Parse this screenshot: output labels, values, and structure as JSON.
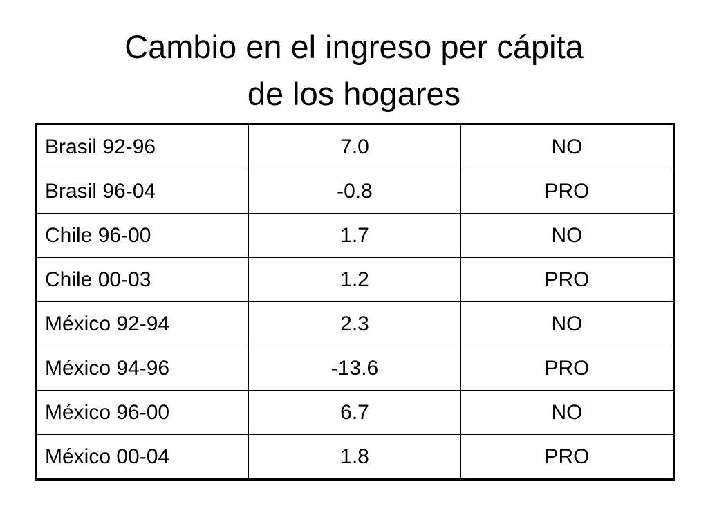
{
  "title": [
    "Cambio en el ingreso per cápita",
    "de los hogares"
  ],
  "table": {
    "rows": [
      [
        "Brasil 92-96",
        "7.0",
        "NO"
      ],
      [
        "Brasil 96-04",
        "-0.8",
        "PRO"
      ],
      [
        "Chile 96-00",
        "1.7",
        "NO"
      ],
      [
        "Chile 00-03",
        "1.2",
        "PRO"
      ],
      [
        "México 92-94",
        "2.3",
        "NO"
      ],
      [
        "México 94-96",
        "-13.6",
        "PRO"
      ],
      [
        "México 96-00",
        "6.7",
        "NO"
      ],
      [
        "México 00-04",
        "1.8",
        "PRO"
      ]
    ]
  }
}
